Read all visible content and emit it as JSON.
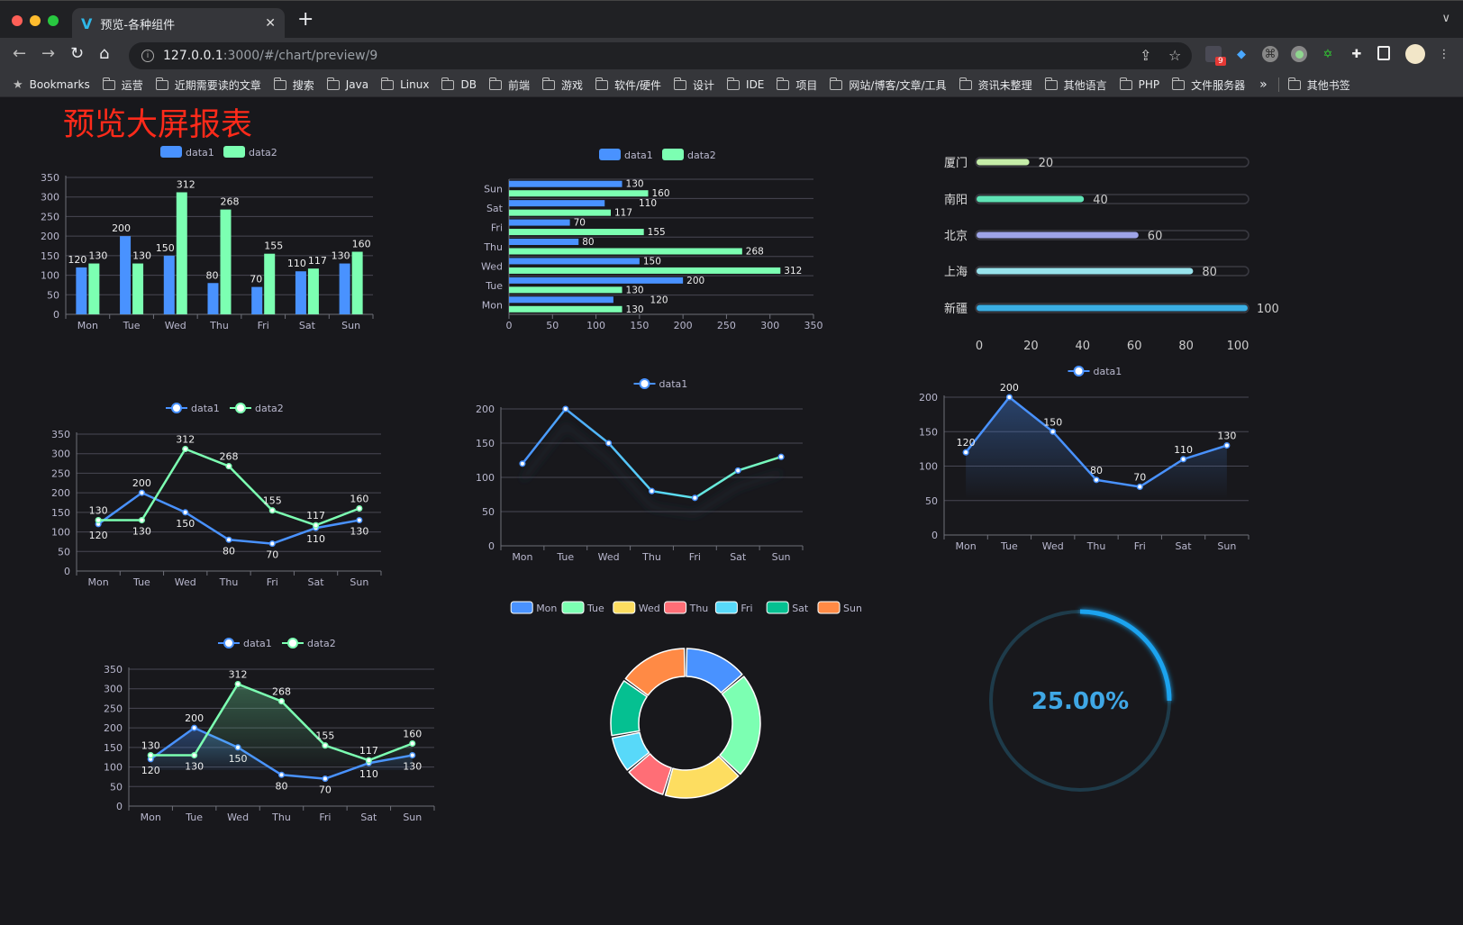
{
  "browser": {
    "tab_title": "预览-各种组件",
    "url_host": "127.0.0.1",
    "url_rest": ":3000/#/chart/preview/9",
    "extension_badge": "9",
    "bookmarks": [
      "Bookmarks",
      "运营",
      "近期需要读的文章",
      "搜索",
      "Java",
      "Linux",
      "DB",
      "前端",
      "游戏",
      "软件/硬件",
      "设计",
      "IDE",
      "项目",
      "网站/博客/文章/工具",
      "资讯未整理",
      "其他语言",
      "PHP",
      "文件服务器"
    ],
    "bookmarks_overflow": "»",
    "other_bookmarks": "其他书签"
  },
  "page": {
    "title": "预览大屏报表",
    "title_color": "#ff2a1a",
    "background": "#18181c"
  },
  "colors": {
    "data1": "#4992ff",
    "data2": "#7cffb2",
    "text": "#b9b8ce",
    "grid": "#484753"
  },
  "chart_data": [
    {
      "type": "bar",
      "categories": [
        "Mon",
        "Tue",
        "Wed",
        "Thu",
        "Fri",
        "Sat",
        "Sun"
      ],
      "series": [
        {
          "name": "data1",
          "values": [
            120,
            200,
            150,
            80,
            70,
            110,
            130
          ]
        },
        {
          "name": "data2",
          "values": [
            130,
            130,
            312,
            268,
            155,
            117,
            160
          ]
        }
      ],
      "ylim": [
        0,
        350
      ],
      "y_interval": 50,
      "data_labels": true,
      "legend": "top-center"
    },
    {
      "type": "bar",
      "orientation": "horizontal",
      "categories": [
        "Mon",
        "Tue",
        "Wed",
        "Thu",
        "Fri",
        "Sat",
        "Sun"
      ],
      "series": [
        {
          "name": "data1",
          "values": [
            120,
            200,
            150,
            80,
            70,
            110,
            130
          ]
        },
        {
          "name": "data2",
          "values": [
            130,
            130,
            312,
            268,
            155,
            117,
            160
          ]
        }
      ],
      "xlim": [
        0,
        350
      ],
      "x_interval": 50,
      "data_labels": true,
      "legend": "top-center"
    },
    {
      "type": "bar",
      "orientation": "horizontal-progress",
      "categories": [
        "厦门",
        "南阳",
        "北京",
        "上海",
        "新疆"
      ],
      "values": [
        20,
        40,
        60,
        80,
        100
      ],
      "colors": [
        "#c5eda8",
        "#5fe3b5",
        "#9ea4e8",
        "#98e3ec",
        "#3aaee3"
      ],
      "xlim": [
        0,
        100
      ],
      "x_interval": 20
    },
    {
      "type": "line",
      "categories": [
        "Mon",
        "Tue",
        "Wed",
        "Thu",
        "Fri",
        "Sat",
        "Sun"
      ],
      "series": [
        {
          "name": "data1",
          "values": [
            120,
            200,
            150,
            80,
            70,
            110,
            130
          ]
        },
        {
          "name": "data2",
          "values": [
            130,
            130,
            312,
            268,
            155,
            117,
            160
          ]
        }
      ],
      "ylim": [
        0,
        350
      ],
      "y_interval": 50,
      "data_labels": true,
      "legend": "top-center"
    },
    {
      "type": "line",
      "categories": [
        "Mon",
        "Tue",
        "Wed",
        "Thu",
        "Fri",
        "Sat",
        "Sun"
      ],
      "series": [
        {
          "name": "data1",
          "values": [
            120,
            200,
            150,
            80,
            70,
            110,
            130
          ]
        }
      ],
      "ylim": [
        0,
        200
      ],
      "y_interval": 50,
      "data_labels": false,
      "gradient_line": true,
      "legend": "top-center"
    },
    {
      "type": "area",
      "categories": [
        "Mon",
        "Tue",
        "Wed",
        "Thu",
        "Fri",
        "Sat",
        "Sun"
      ],
      "series": [
        {
          "name": "data1",
          "values": [
            120,
            200,
            150,
            80,
            70,
            110,
            130
          ]
        }
      ],
      "ylim": [
        0,
        200
      ],
      "y_interval": 50,
      "data_labels": true,
      "legend": "top-center"
    },
    {
      "type": "area",
      "categories": [
        "Mon",
        "Tue",
        "Wed",
        "Thu",
        "Fri",
        "Sat",
        "Sun"
      ],
      "series": [
        {
          "name": "data1",
          "values": [
            120,
            200,
            150,
            80,
            70,
            110,
            130
          ]
        },
        {
          "name": "data2",
          "values": [
            130,
            130,
            312,
            268,
            155,
            117,
            160
          ]
        }
      ],
      "ylim": [
        0,
        350
      ],
      "y_interval": 50,
      "data_labels": true,
      "legend": "top-center"
    },
    {
      "type": "pie",
      "donut": true,
      "categories": [
        "Mon",
        "Tue",
        "Wed",
        "Thu",
        "Fri",
        "Sat",
        "Sun"
      ],
      "values": [
        120,
        200,
        150,
        80,
        70,
        110,
        130
      ],
      "colors": [
        "#4992ff",
        "#7cffb2",
        "#fddd60",
        "#ff6e76",
        "#58d9f9",
        "#05c091",
        "#ff8a45"
      ],
      "legend": "top-center"
    },
    {
      "type": "gauge",
      "value": 25,
      "max": 100,
      "label": "25.00%",
      "color": "#1aa3ef"
    }
  ]
}
